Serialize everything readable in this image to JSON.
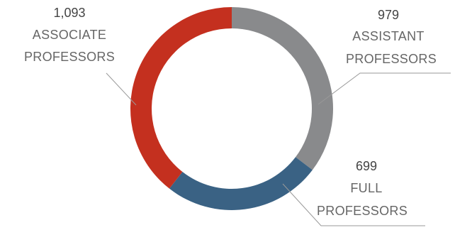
{
  "chart_data": {
    "type": "pie",
    "categories": [
      "Assistant Professors",
      "Full Professors",
      "Associate Professors"
    ],
    "values": [
      979,
      699,
      1093
    ],
    "labels": [
      {
        "value": "979",
        "line1": "ASSISTANT",
        "line2": "PROFESSORS"
      },
      {
        "value": "699",
        "line1": "FULL",
        "line2": "PROFESSORS"
      },
      {
        "value": "1,093",
        "line1": "ASSOCIATE",
        "line2": "PROFESSORS"
      }
    ],
    "colors": [
      "#898a8c",
      "#3a6284",
      "#c4301f"
    ],
    "title": ""
  }
}
